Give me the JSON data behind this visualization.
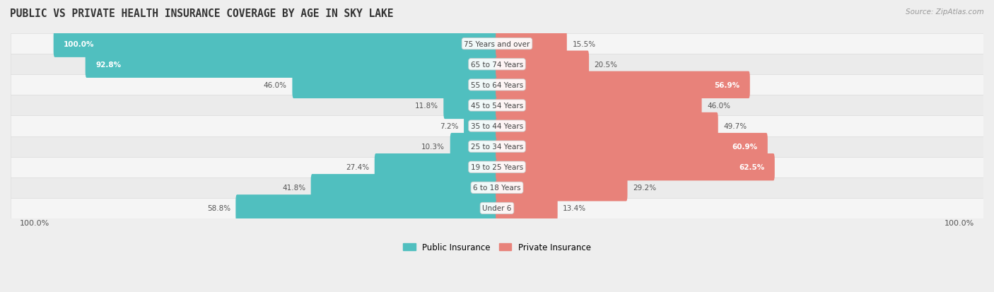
{
  "title": "PUBLIC VS PRIVATE HEALTH INSURANCE COVERAGE BY AGE IN SKY LAKE",
  "source": "Source: ZipAtlas.com",
  "categories": [
    "Under 6",
    "6 to 18 Years",
    "19 to 25 Years",
    "25 to 34 Years",
    "35 to 44 Years",
    "45 to 54 Years",
    "55 to 64 Years",
    "65 to 74 Years",
    "75 Years and over"
  ],
  "public_values": [
    58.8,
    41.8,
    27.4,
    10.3,
    7.2,
    11.8,
    46.0,
    92.8,
    100.0
  ],
  "private_values": [
    13.4,
    29.2,
    62.5,
    60.9,
    49.7,
    46.0,
    56.9,
    20.5,
    15.5
  ],
  "public_color": "#50bfbf",
  "private_color": "#e8827a",
  "bg_color": "#eeeeee",
  "row_bg_odd": "#f5f5f5",
  "row_bg_even": "#ebebeb",
  "title_color": "#333333",
  "label_color": "#555555",
  "legend_public": "Public Insurance",
  "legend_private": "Private Insurance",
  "max_value": 100.0,
  "bottom_labels": [
    "100.0%",
    "100.0%"
  ]
}
